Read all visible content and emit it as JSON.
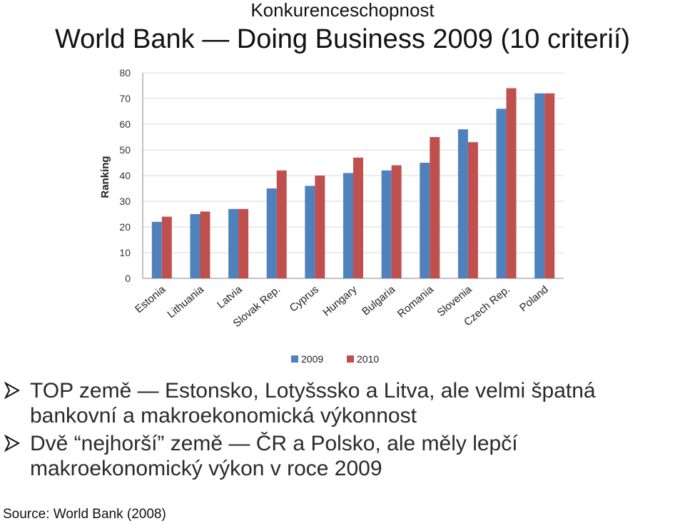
{
  "header": {
    "supertitle": "Konkurenceschopnost",
    "title": "World Bank — Doing Business 2009 (10 criterií)"
  },
  "chart_data": {
    "type": "bar",
    "title": "",
    "ylabel": "Ranking",
    "xlabel": "",
    "ylim": [
      0,
      80
    ],
    "yticks": [
      0,
      10,
      20,
      30,
      40,
      50,
      60,
      70,
      80
    ],
    "grid": true,
    "legend_position": "bottom",
    "categories": [
      "Estonia",
      "Lithuania",
      "Latvia",
      "Slovak Rep.",
      "Cyprus",
      "Hungary",
      "Bulgaria",
      "Romania",
      "Slovenia",
      "Czech Rep.",
      "Poland"
    ],
    "series": [
      {
        "name": "2009",
        "color": "#4F81BD",
        "values": [
          22,
          25,
          27,
          35,
          36,
          41,
          42,
          45,
          58,
          66,
          72
        ]
      },
      {
        "name": "2010",
        "color": "#C0504D",
        "values": [
          24,
          26,
          27,
          42,
          40,
          47,
          44,
          55,
          53,
          74,
          72
        ]
      }
    ]
  },
  "bullets": [
    {
      "text": "TOP země — Estonsko, Lotyšssko a Litva, ale velmi špatná bankovní a makroekonomická výkonnost"
    },
    {
      "text": "Dvě “nejhorší” země — ČR a Polsko, ale měly lepčí makroekonomický výkon v roce 2009"
    }
  ],
  "source": "Source: World Bank (2008)",
  "colors": {
    "arrow": "#111111",
    "gridline": "#d9d9d9",
    "axis": "#868686"
  }
}
